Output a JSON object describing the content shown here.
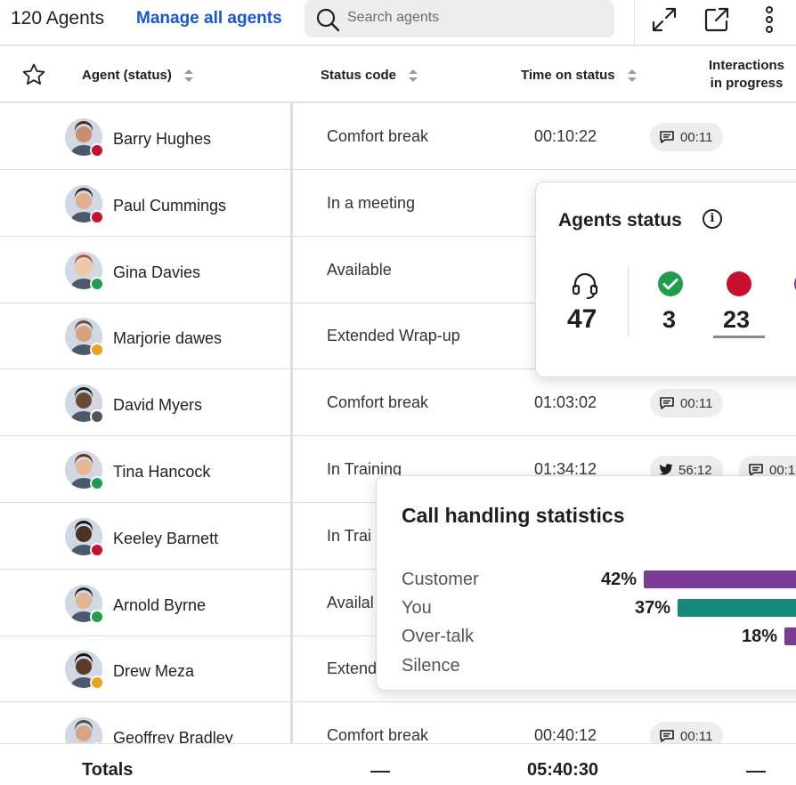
{
  "header": {
    "title": "120 Agents",
    "manage_link": "Manage all agents",
    "search_placeholder": "Search agents",
    "tools": [
      "expand-icon",
      "open-external-icon",
      "more-vertical-icon"
    ]
  },
  "columns": {
    "favorite": "star-icon",
    "agent": "Agent (status)",
    "status_code": "Status code",
    "time_on_status": "Time on status",
    "interactions_line1": "Interactions",
    "interactions_line2": "in progress"
  },
  "colors": {
    "link": "#1457d6",
    "available": "#1e9e4a",
    "busy": "#c8102e",
    "away": "#e8a317",
    "offline": "#555555",
    "customer_bar": "#7b3a96",
    "you_bar": "#158a7a"
  },
  "rows": [
    {
      "name": "Barry Hughes",
      "status": "Comfort break",
      "time": "00:10:22",
      "chip": "00:11",
      "badge": "busy"
    },
    {
      "name": "Paul Cummings",
      "status": "In a meeting",
      "time": "",
      "chip": "",
      "badge": "busy"
    },
    {
      "name": "Gina Davies",
      "status": "Available",
      "time": "",
      "chip": "",
      "badge": "available"
    },
    {
      "name": "Marjorie dawes",
      "status": "Extended Wrap-up",
      "time": "",
      "chip": "",
      "badge": "away"
    },
    {
      "name": "David Myers",
      "status": "Comfort break",
      "time": "01:03:02",
      "chip": "00:11",
      "badge": "offline"
    },
    {
      "name": "Tina Hancock",
      "status": "In Training",
      "time": "01:34:12",
      "chip": "56:12",
      "chip2": "00:1",
      "badge": "available"
    },
    {
      "name": "Keeley Barnett",
      "status": "In Trai",
      "time": "",
      "chip": "",
      "badge": "busy"
    },
    {
      "name": "Arnold Byrne",
      "status": "Availal",
      "time": "",
      "chip": "",
      "badge": "available"
    },
    {
      "name": "Drew Meza",
      "status": "Extend",
      "time": "",
      "chip": "",
      "badge": "away"
    },
    {
      "name": "Geoffrey Bradley",
      "status": "Comfort break",
      "time": "00:40:12",
      "chip": "00:11",
      "badge": "offline"
    }
  ],
  "totals": {
    "label": "Totals",
    "time": "05:40:30"
  },
  "agents_status": {
    "title": "Agents status",
    "info_icon": "i",
    "total": "47",
    "available": "3",
    "busy": "23"
  },
  "call_handling": {
    "title": "Call handling statistics",
    "items": [
      {
        "label": "Customer",
        "percent": "42%",
        "value": 42
      },
      {
        "label": "You",
        "percent": "37%",
        "value": 37
      },
      {
        "label": "Over-talk",
        "percent": "18%",
        "value": 18
      },
      {
        "label": "Silence",
        "percent": "",
        "value": null
      }
    ]
  }
}
